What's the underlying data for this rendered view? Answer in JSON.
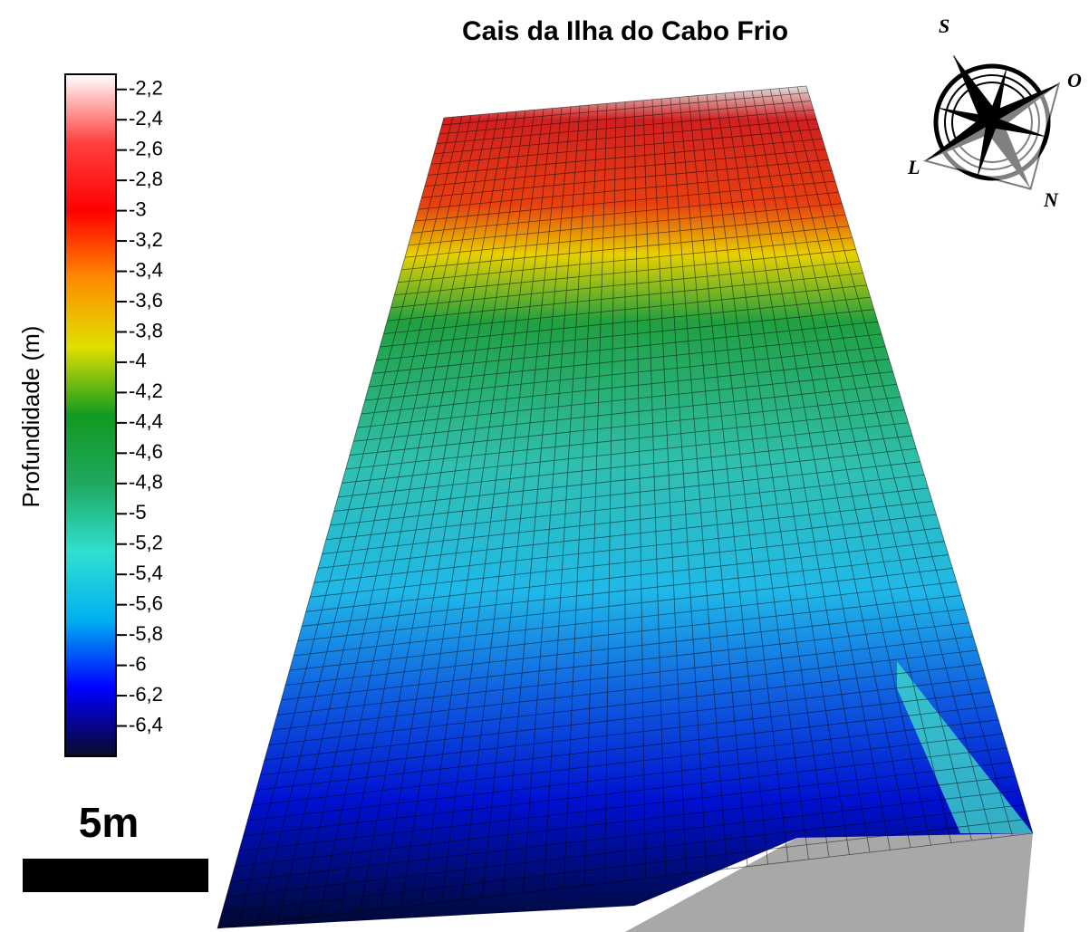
{
  "title": "Cais da Ilha do Cabo Frio",
  "colorbar": {
    "label": "Profundidade (m)",
    "lim": [
      -6.6,
      -2.1
    ],
    "colors": [
      "#0a0a2a",
      "#0000ff",
      "#00b0f0",
      "#30e0d0",
      "#20a860",
      "#109a20",
      "#e0e000",
      "#ff8c00",
      "#ff0000",
      "#ff4040",
      "#ffffff"
    ],
    "ticks": [
      {
        "value": -2.2,
        "label": "-2,2"
      },
      {
        "value": -2.4,
        "label": "-2,4"
      },
      {
        "value": -2.6,
        "label": "-2,6"
      },
      {
        "value": -2.8,
        "label": "-2,8"
      },
      -3,
      {
        "value": -3.2,
        "label": "-3,2"
      },
      {
        "value": -3.4,
        "label": "-3,4"
      },
      {
        "value": -3.6,
        "label": "-3,6"
      },
      {
        "value": -3.8,
        "label": "-3,8"
      },
      -4,
      {
        "value": -4.2,
        "label": "-4,2"
      },
      {
        "value": -4.4,
        "label": "-4,4"
      },
      {
        "value": -4.6,
        "label": "-4,6"
      },
      {
        "value": -4.8,
        "label": "-4,8"
      },
      -5,
      {
        "value": -5.2,
        "label": "-5,2"
      },
      {
        "value": -5.4,
        "label": "-5,4"
      },
      {
        "value": -5.6,
        "label": "-5,6"
      },
      {
        "value": -5.8,
        "label": "-5,8"
      },
      -6,
      {
        "value": -6.2,
        "label": "-6,2"
      },
      {
        "value": -6.4,
        "label": "-6,4"
      }
    ]
  },
  "scale_bar": {
    "label": "5m"
  },
  "compass": {
    "labels": [
      "S",
      "O",
      "L",
      "N"
    ]
  }
}
